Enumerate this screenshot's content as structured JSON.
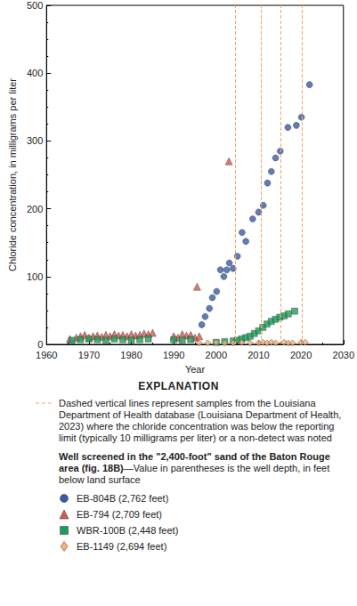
{
  "chart_data": {
    "type": "scatter",
    "x_label": "Year",
    "y_label": "Chloride concentration, in milligrams per liter",
    "xlim": [
      1960,
      2030
    ],
    "xticks": [
      1960,
      1970,
      1980,
      1990,
      2000,
      2010,
      2020,
      2030
    ],
    "ylim": [
      0,
      500
    ],
    "yticks": [
      0,
      100,
      200,
      300,
      400,
      500
    ],
    "grid": false,
    "explanation_title": "EXPLANATION",
    "dashed_lines": {
      "x": [
        2004.5,
        2010.6,
        2015.2,
        2020.2
      ],
      "color": "#f4a46b",
      "line_style": "dashed",
      "label": "Dashed vertical lines represent samples from the Louisiana Department of Health database (Louisiana Department of Health, 2023) where the chloride concentration was below the reporting limit (typically 10 milligrams per liter) or a non-detect was noted"
    },
    "legend_heading": "Well screened in the \"2,400-foot\" sand of the Baton Rouge area (fig. 18B)",
    "legend_heading_note": "—Value in parentheses is the well depth, in feet below land surface",
    "series": [
      {
        "name": "EB-804B (2,762 feet)",
        "color": "#3a5ba9",
        "marker": "circle",
        "x": [
          1996.6,
          1997.4,
          1998.4,
          1999.1,
          2000.1,
          2001.0,
          2001.8,
          2002.5,
          2003.1,
          2004.0,
          2005.0,
          2006.1,
          2007.0,
          2008.6,
          2010.0,
          2011.1,
          2012.1,
          2013.0,
          2014.0,
          2015.1,
          2016.9,
          2018.9,
          2020.1,
          2022.0
        ],
        "values": [
          29,
          41,
          53,
          69,
          78,
          110,
          100,
          110,
          120,
          112,
          130,
          165,
          152,
          185,
          195,
          205,
          238,
          255,
          275,
          285,
          320,
          323,
          335,
          383
        ]
      },
      {
        "name": "EB-794 (2,709 feet)",
        "color": "#d05a4e",
        "marker": "triangle",
        "x": [
          1965.5,
          1967.0,
          1968.0,
          1969.0,
          1970.0,
          1971.0,
          1972.0,
          1973.0,
          1974.0,
          1975.0,
          1976.0,
          1977.0,
          1978.0,
          1979.0,
          1980.0,
          1981.0,
          1982.0,
          1983.0,
          1984.0,
          1985.0,
          1990.0,
          1991.0,
          1992.0,
          1993.0,
          1994.0,
          1995.0,
          1995.5,
          1996.0,
          2003.0
        ],
        "values": [
          8,
          10,
          12,
          14,
          10,
          12,
          13,
          11,
          14,
          12,
          15,
          13,
          14,
          12,
          15,
          13,
          14,
          16,
          15,
          17,
          12,
          10,
          15,
          13,
          14,
          10,
          85,
          12,
          270
        ]
      },
      {
        "name": "WBR-100B (2,448 feet)",
        "color": "#1e9d5a",
        "marker": "square",
        "x": [
          1966.0,
          1968.0,
          1970.0,
          1972.0,
          1974.0,
          1976.0,
          1978.0,
          1980.0,
          1982.0,
          1984.0,
          1990.0,
          1992.0,
          1994.0,
          2000.0,
          2002.0,
          2004.0,
          2005.0,
          2006.0,
          2007.0,
          2008.0,
          2009.0,
          2010.0,
          2011.0,
          2012.0,
          2013.0,
          2014.0,
          2015.0,
          2016.0,
          2017.0,
          2018.5
        ],
        "values": [
          6,
          7,
          8,
          7,
          6,
          8,
          7,
          6,
          7,
          8,
          7,
          6,
          7,
          3,
          4,
          5,
          6,
          8,
          10,
          12,
          16,
          20,
          25,
          30,
          34,
          37,
          40,
          42,
          45,
          49
        ]
      },
      {
        "name": "EB-1149 (2,694 feet)",
        "color": "#f6b27a",
        "marker": "diamond",
        "x": [
          1996.0,
          1998.0,
          2000.0,
          2002.0,
          2004.0,
          2006.0,
          2008.0,
          2010.0,
          2011.0,
          2012.0,
          2013.0,
          2014.0,
          2016.0,
          2017.0,
          2018.0,
          2020.0,
          2021.0
        ],
        "values": [
          2,
          2,
          3,
          2,
          2,
          3,
          2,
          2,
          3,
          2,
          3,
          2,
          3,
          2,
          2,
          3,
          3
        ]
      }
    ]
  }
}
